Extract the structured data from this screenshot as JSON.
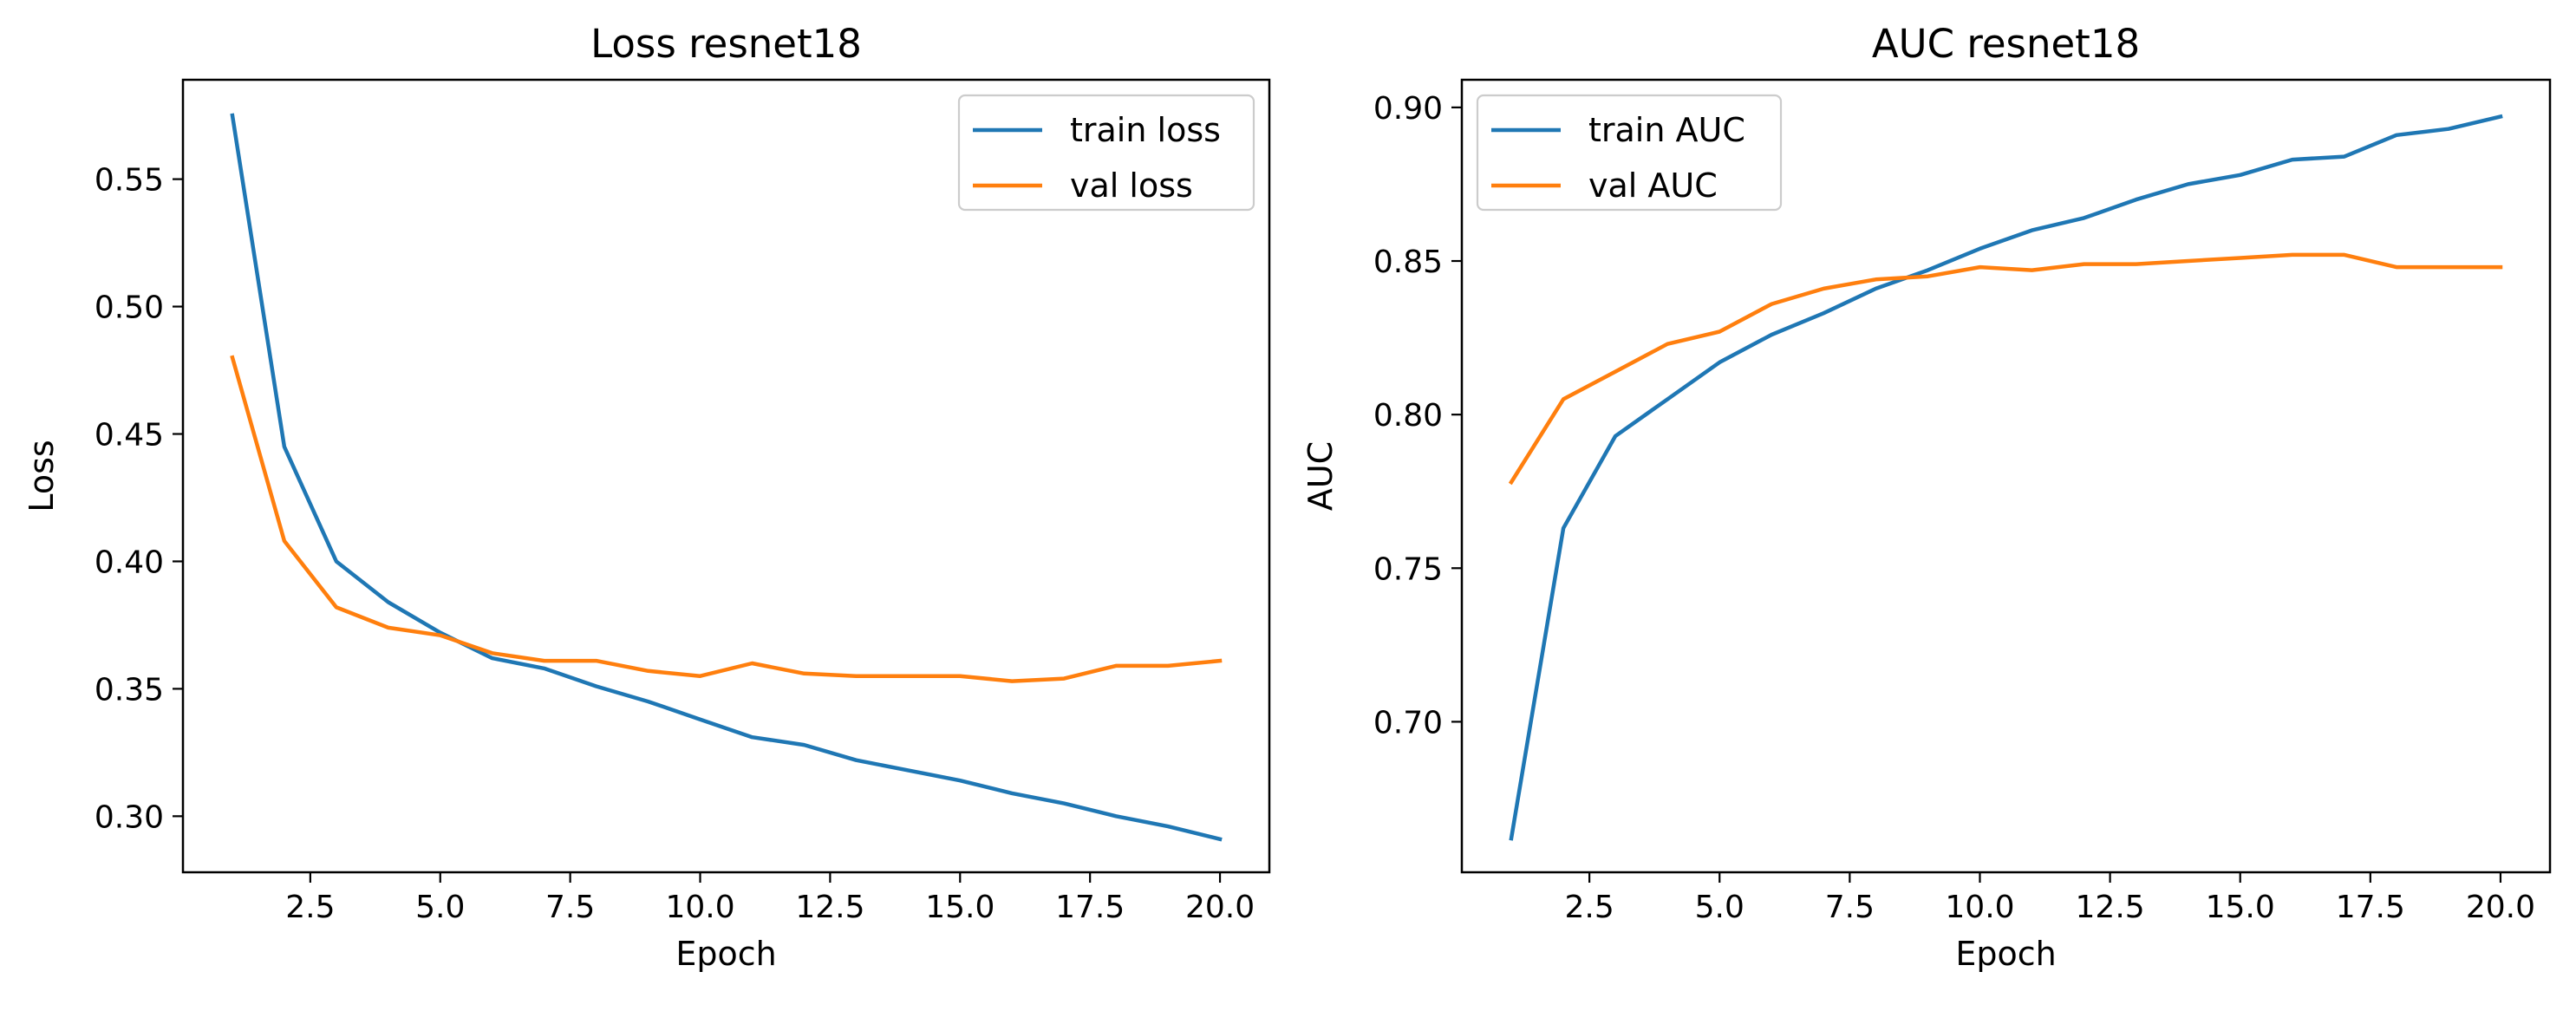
{
  "chart_data": [
    {
      "type": "line",
      "title": "Loss resnet18",
      "xlabel": "Epoch",
      "ylabel": "Loss",
      "x": [
        1,
        2,
        3,
        4,
        5,
        6,
        7,
        8,
        9,
        10,
        11,
        12,
        13,
        14,
        15,
        16,
        17,
        18,
        19,
        20
      ],
      "xlim": [
        0.05,
        20.95
      ],
      "ylim": [
        0.278,
        0.589
      ],
      "xticks": [
        2.5,
        5.0,
        7.5,
        10.0,
        12.5,
        15.0,
        17.5,
        20.0
      ],
      "xtick_labels": [
        "2.5",
        "5.0",
        "7.5",
        "10.0",
        "12.5",
        "15.0",
        "17.5",
        "20.0"
      ],
      "yticks": [
        0.3,
        0.35,
        0.4,
        0.45,
        0.5,
        0.55
      ],
      "ytick_labels": [
        "0.30",
        "0.35",
        "0.40",
        "0.45",
        "0.50",
        "0.55"
      ],
      "grid": false,
      "legend_position": "upper right",
      "series": [
        {
          "name": "train loss",
          "color": "#1f77b4",
          "values": [
            0.575,
            0.445,
            0.4,
            0.384,
            0.372,
            0.362,
            0.358,
            0.351,
            0.345,
            0.338,
            0.331,
            0.328,
            0.322,
            0.318,
            0.314,
            0.309,
            0.305,
            0.3,
            0.296,
            0.291
          ]
        },
        {
          "name": "val loss",
          "color": "#ff7f0e",
          "values": [
            0.48,
            0.408,
            0.382,
            0.374,
            0.371,
            0.364,
            0.361,
            0.361,
            0.357,
            0.355,
            0.36,
            0.356,
            0.355,
            0.355,
            0.355,
            0.353,
            0.354,
            0.359,
            0.359,
            0.361
          ]
        }
      ]
    },
    {
      "type": "line",
      "title": "AUC resnet18",
      "xlabel": "Epoch",
      "ylabel": "AUC",
      "x": [
        1,
        2,
        3,
        4,
        5,
        6,
        7,
        8,
        9,
        10,
        11,
        12,
        13,
        14,
        15,
        16,
        17,
        18,
        19,
        20
      ],
      "xlim": [
        0.05,
        20.95
      ],
      "ylim": [
        0.651,
        0.909
      ],
      "xticks": [
        2.5,
        5.0,
        7.5,
        10.0,
        12.5,
        15.0,
        17.5,
        20.0
      ],
      "xtick_labels": [
        "2.5",
        "5.0",
        "7.5",
        "10.0",
        "12.5",
        "15.0",
        "17.5",
        "20.0"
      ],
      "yticks": [
        0.7,
        0.75,
        0.8,
        0.85,
        0.9
      ],
      "ytick_labels": [
        "0.70",
        "0.75",
        "0.80",
        "0.85",
        "0.90"
      ],
      "grid": false,
      "legend_position": "upper left",
      "series": [
        {
          "name": "train AUC",
          "color": "#1f77b4",
          "values": [
            0.662,
            0.763,
            0.793,
            0.805,
            0.817,
            0.826,
            0.833,
            0.841,
            0.847,
            0.854,
            0.86,
            0.864,
            0.87,
            0.875,
            0.878,
            0.883,
            0.884,
            0.891,
            0.893,
            0.897
          ]
        },
        {
          "name": "val AUC",
          "color": "#ff7f0e",
          "values": [
            0.778,
            0.805,
            0.814,
            0.823,
            0.827,
            0.836,
            0.841,
            0.844,
            0.845,
            0.848,
            0.847,
            0.849,
            0.849,
            0.85,
            0.851,
            0.852,
            0.852,
            0.848,
            0.848,
            0.848
          ]
        }
      ]
    }
  ]
}
